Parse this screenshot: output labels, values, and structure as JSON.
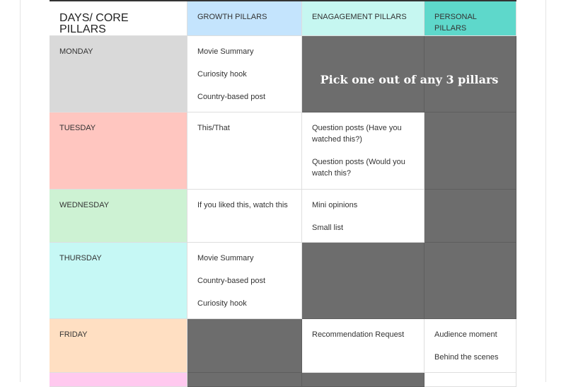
{
  "table": {
    "header": [
      "DAYS/ CORE PILLARS",
      "GROWTH PILLARS",
      "ENAGAGEMENT PILLARS",
      "PERSONAL PILLARS"
    ],
    "rows": [
      {
        "day": "MONDAY",
        "cells": [
          [
            "Movie Summary",
            "Curiosity hook",
            "Country-based post"
          ],
          [],
          []
        ]
      },
      {
        "day": "TUESDAY",
        "cells": [
          [
            "This/That"
          ],
          [
            "Question posts (Have you watched this?)",
            "Question posts (Would you watch this?"
          ],
          []
        ]
      },
      {
        "day": "WEDNESDAY",
        "cells": [
          [
            "If you liked this, watch this"
          ],
          [
            "Mini opinions",
            "Small list"
          ],
          []
        ]
      },
      {
        "day": "THURSDAY",
        "cells": [
          [
            "Movie Summary",
            "Country-based post",
            "Curiosity hook"
          ],
          [],
          []
        ]
      },
      {
        "day": "FRIDAY",
        "cells": [
          [],
          [
            "Recommendation Request"
          ],
          [
            "Audience moment",
            "Behind the scenes"
          ]
        ]
      }
    ],
    "note": "Pick one out of any 3 pillars"
  }
}
